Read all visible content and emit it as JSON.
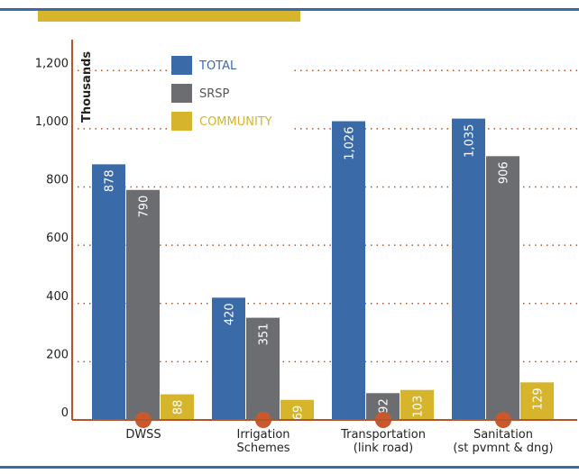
{
  "chart_data": {
    "type": "bar",
    "categories": [
      [
        "DWSS"
      ],
      [
        "Irrigation",
        "Schemes"
      ],
      [
        "Transportation",
        "(link road)"
      ],
      [
        "Sanitation",
        "(st pvmnt & dng)"
      ]
    ],
    "series": [
      {
        "name": "TOTAL",
        "color": "#3b6aa8",
        "values": [
          878,
          420,
          1026,
          1035
        ],
        "value_labels": [
          "878",
          "420",
          "1,026",
          "1,035"
        ]
      },
      {
        "name": "SRSP",
        "color": "#6c6d70",
        "values": [
          790,
          351,
          92,
          906
        ],
        "value_labels": [
          "790",
          "351",
          "92",
          "906"
        ]
      },
      {
        "name": "COMMUNITY",
        "color": "#d6b42b",
        "values": [
          88,
          69,
          103,
          129
        ],
        "value_labels": [
          "88",
          "69",
          "103",
          "129"
        ]
      }
    ],
    "y_label": "Thousands",
    "ylim": [
      0,
      1300
    ],
    "yticks": [
      0,
      200,
      400,
      600,
      {
        "value": 800,
        "label": "800"
      },
      {
        "value": 1000,
        "label": "1,000"
      },
      {
        "value": 1200,
        "label": "1,200"
      }
    ],
    "grid": true,
    "legend": "top"
  }
}
